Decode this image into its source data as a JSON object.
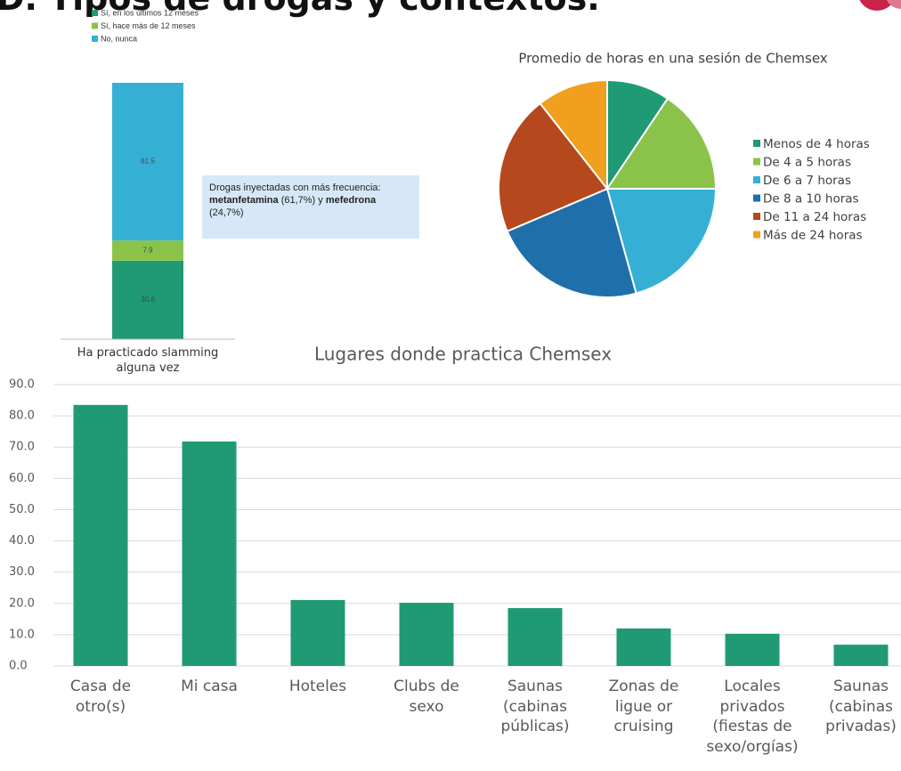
{
  "slide_title": "D. Tipos de drogas y contextos.",
  "chart_data": [
    {
      "type": "stacked_bar",
      "categories": [
        "Ha practicado slamming alguna vez"
      ],
      "series": [
        {
          "name": "Sí, en los últimos 12 meses",
          "color": "#1f9a74",
          "values": [
            30.6
          ]
        },
        {
          "name": "Sí, hace más de 12 meses",
          "color": "#8bc34a",
          "values": [
            7.9
          ]
        },
        {
          "name": "No, nunca",
          "color": "#35b0d4",
          "values": [
            61.5
          ]
        }
      ],
      "annotation": [
        {
          "text": "Drogas inyectadas con más frecuencia: "
        },
        {
          "text": "metanfetamina",
          "bold": true
        },
        {
          "text": " (61,7%) y "
        },
        {
          "text": "mefedrona",
          "bold": true
        },
        {
          "text": " (24,7%)"
        }
      ]
    },
    {
      "type": "pie",
      "title": "Promedio de horas en una sesión de Chemsex",
      "categories": [
        "Menos de 4 horas",
        "De 4 a 5 horas",
        "De 6 a 7 horas",
        "De 8 a 10 horas",
        "De 11 a 24 horas",
        "Más de 24 horas"
      ],
      "values": [
        9.4,
        15.6,
        20.7,
        22.9,
        20.8,
        10.6
      ],
      "colors": [
        "#1f9a74",
        "#8bc34a",
        "#35b0d4",
        "#1f6faa",
        "#b5481c",
        "#f0a01e"
      ]
    },
    {
      "type": "bar",
      "title": "Lugares donde practica Chemsex",
      "categories": [
        "Casa de otro(s)",
        "Mi casa",
        "Hoteles",
        "Clubs de sexo",
        "Saunas (cabinas públicas)",
        "Zonas de ligue or cruising",
        "Locales privados (fiestas de sexo/orgías)",
        "Saunas (cabinas privadas)"
      ],
      "values": [
        83.5,
        71.8,
        21.1,
        20.2,
        18.5,
        12.0,
        10.3,
        6.8
      ],
      "color": "#1f9a74",
      "ylim": [
        0,
        90
      ],
      "yticks": [
        {
          "value": 0,
          "label": "0.0"
        },
        {
          "value": 10,
          "label": "10.0"
        },
        {
          "value": 20,
          "label": "20.0"
        },
        {
          "value": 30,
          "label": "30.0"
        },
        {
          "value": 40,
          "label": "40.0"
        },
        {
          "value": 50,
          "label": "50.0"
        },
        {
          "value": 60,
          "label": "60.0"
        },
        {
          "value": 70,
          "label": "70.0"
        },
        {
          "value": 80,
          "label": "80.0"
        },
        {
          "value": 90,
          "label": "90.0"
        }
      ],
      "grid": true
    }
  ]
}
